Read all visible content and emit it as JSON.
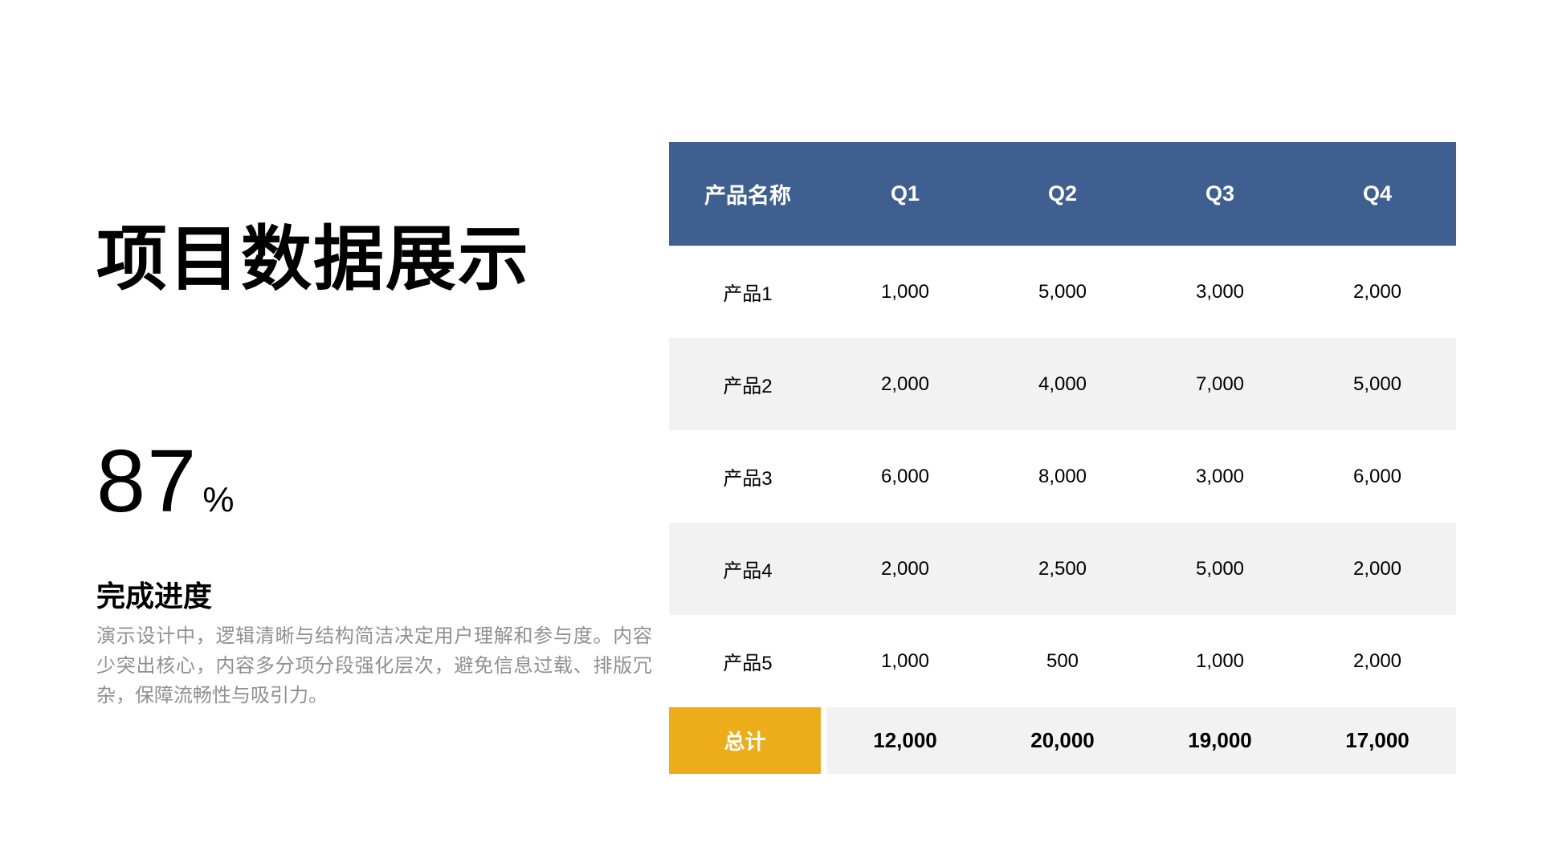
{
  "slide": {
    "title": "项目数据展示",
    "stat": {
      "value": "87",
      "unit": "%",
      "caption": "完成进度",
      "description": "演示设计中，逻辑清晰与结构简洁决定用户理解和参与度。内容少突出核心，内容多分项分段强化层次，避免信息过载、排版冗杂，保障流畅性与吸引力。"
    }
  },
  "table": {
    "columns": [
      "产品名称",
      "Q1",
      "Q2",
      "Q3",
      "Q4"
    ],
    "rows": [
      {
        "label": "产品1",
        "values": [
          "1,000",
          "5,000",
          "3,000",
          "2,000"
        ]
      },
      {
        "label": "产品2",
        "values": [
          "2,000",
          "4,000",
          "7,000",
          "5,000"
        ]
      },
      {
        "label": "产品3",
        "values": [
          "6,000",
          "8,000",
          "3,000",
          "6,000"
        ]
      },
      {
        "label": "产品4",
        "values": [
          "2,000",
          "2,500",
          "5,000",
          "2,000"
        ]
      },
      {
        "label": "产品5",
        "values": [
          "1,000",
          "500",
          "1,000",
          "2,000"
        ]
      }
    ],
    "total": {
      "label": "总计",
      "values": [
        "12,000",
        "20,000",
        "19,000",
        "17,000"
      ]
    }
  },
  "colors": {
    "header_bg": "#3E5F90",
    "total_label_bg": "#EDAD1B",
    "stripe_bg": "#F2F2F2",
    "description_text": "#909090"
  }
}
